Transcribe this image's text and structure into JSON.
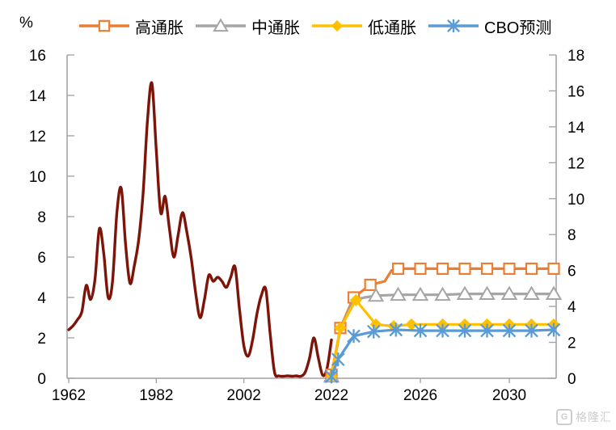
{
  "chart_data": {
    "type": "line",
    "title": "",
    "unit_label": "%",
    "grid": false,
    "legend_position": "top",
    "left_axis": {
      "min": 0,
      "max": 16,
      "ticks": [
        0,
        2,
        4,
        6,
        8,
        10,
        12,
        14,
        16
      ]
    },
    "right_axis": {
      "min": 0,
      "max": 18,
      "ticks": [
        0,
        2,
        4,
        6,
        8,
        10,
        12,
        14,
        16,
        18
      ]
    },
    "x_axis": {
      "tick_labels": [
        "1962",
        "1982",
        "2002",
        "2022",
        "2026",
        "2030"
      ],
      "tick_years": [
        1962,
        1982,
        2002,
        2022,
        2026,
        2030
      ],
      "start_year": 1962,
      "end_year": 2032
    },
    "legend": [
      {
        "label": "高通胀",
        "color": "#ED7D31",
        "marker": "square"
      },
      {
        "label": "中通胀",
        "color": "#A5A5A5",
        "marker": "triangle"
      },
      {
        "label": "低通胀",
        "color": "#FFC000",
        "marker": "diamond"
      },
      {
        "label": "CBO预测",
        "color": "#5B9BD5",
        "marker": "star"
      }
    ],
    "series": [
      {
        "id": "historical-inflation",
        "axis": "left",
        "color": "#7D1409",
        "width": 3.4,
        "smooth": true,
        "marker": "none",
        "points": [
          [
            1962,
            2.4
          ],
          [
            1963,
            2.6
          ],
          [
            1964,
            2.9
          ],
          [
            1965,
            3.3
          ],
          [
            1966,
            4.6
          ],
          [
            1967,
            3.9
          ],
          [
            1968,
            4.9
          ],
          [
            1969,
            7.4
          ],
          [
            1970,
            6.2
          ],
          [
            1971,
            4.0
          ],
          [
            1972,
            4.8
          ],
          [
            1973,
            8.2
          ],
          [
            1974,
            9.4
          ],
          [
            1975,
            6.6
          ],
          [
            1976,
            4.7
          ],
          [
            1977,
            5.6
          ],
          [
            1978,
            6.9
          ],
          [
            1979,
            9.2
          ],
          [
            1980,
            12.8
          ],
          [
            1981,
            14.6
          ],
          [
            1982,
            11.3
          ],
          [
            1983,
            8.2
          ],
          [
            1984,
            9.0
          ],
          [
            1985,
            7.4
          ],
          [
            1986,
            6.0
          ],
          [
            1987,
            7.1
          ],
          [
            1988,
            8.2
          ],
          [
            1989,
            7.2
          ],
          [
            1990,
            5.9
          ],
          [
            1991,
            4.2
          ],
          [
            1992,
            3.0
          ],
          [
            1993,
            3.9
          ],
          [
            1994,
            5.1
          ],
          [
            1995,
            4.8
          ],
          [
            1996,
            5.0
          ],
          [
            1997,
            4.8
          ],
          [
            1998,
            4.5
          ],
          [
            1999,
            5.0
          ],
          [
            2000,
            5.5
          ],
          [
            2001,
            3.4
          ],
          [
            2002,
            1.6
          ],
          [
            2003,
            1.1
          ],
          [
            2004,
            1.9
          ],
          [
            2005,
            3.2
          ],
          [
            2006,
            4.1
          ],
          [
            2007,
            4.4
          ],
          [
            2008,
            2.2
          ],
          [
            2009,
            0.3
          ],
          [
            2010,
            0.12
          ],
          [
            2011,
            0.1
          ],
          [
            2012,
            0.12
          ],
          [
            2013,
            0.1
          ],
          [
            2014,
            0.12
          ],
          [
            2015,
            0.1
          ],
          [
            2016,
            0.3
          ],
          [
            2017,
            1.0
          ],
          [
            2018,
            2.0
          ],
          [
            2019,
            1.0
          ],
          [
            2020,
            0.15
          ],
          [
            2021,
            0.5
          ],
          [
            2022,
            1.9
          ]
        ]
      },
      {
        "id": "high-inflation",
        "label": "高通胀",
        "axis": "right",
        "color": "#ED7D31",
        "width": 3.2,
        "smooth": false,
        "marker": "square",
        "points": [
          [
            2022,
            0.2,
            1
          ],
          [
            2022.4,
            2.8,
            1
          ],
          [
            2023,
            4.5,
            1
          ],
          [
            2023.75,
            5.2,
            1
          ],
          [
            2024.4,
            5.4,
            0
          ],
          [
            2024.7,
            6.0,
            0
          ],
          [
            2025,
            6.1,
            1
          ],
          [
            2026,
            6.1,
            1
          ],
          [
            2027,
            6.1,
            1
          ],
          [
            2028,
            6.1,
            1
          ],
          [
            2029,
            6.1,
            1
          ],
          [
            2030,
            6.1,
            1
          ],
          [
            2031,
            6.1,
            1
          ],
          [
            2032,
            6.1,
            1
          ]
        ]
      },
      {
        "id": "mid-inflation",
        "label": "中通胀",
        "axis": "right",
        "color": "#A5A5A5",
        "width": 3.2,
        "smooth": false,
        "marker": "triangle",
        "points": [
          [
            2022,
            0.1,
            1
          ],
          [
            2022.4,
            2.7,
            0
          ],
          [
            2023,
            4.35,
            0
          ],
          [
            2023.5,
            4.5,
            0
          ],
          [
            2024,
            4.6,
            1
          ],
          [
            2025,
            4.65,
            1
          ],
          [
            2026,
            4.65,
            1
          ],
          [
            2027,
            4.65,
            1
          ],
          [
            2028,
            4.7,
            1
          ],
          [
            2029,
            4.7,
            1
          ],
          [
            2030,
            4.7,
            1
          ],
          [
            2031,
            4.7,
            1
          ],
          [
            2032,
            4.7,
            1
          ]
        ]
      },
      {
        "id": "low-inflation",
        "label": "低通胀",
        "axis": "right",
        "color": "#FFC000",
        "width": 3.2,
        "smooth": false,
        "marker": "diamond",
        "points": [
          [
            2022,
            0.1,
            1
          ],
          [
            2022.4,
            2.8,
            1
          ],
          [
            2023.1,
            4.35,
            1
          ],
          [
            2024,
            3.0,
            1
          ],
          [
            2024.8,
            2.9,
            1
          ],
          [
            2025.6,
            3.0,
            1
          ],
          [
            2026.4,
            3.0,
            0
          ],
          [
            2027,
            3.0,
            1
          ],
          [
            2028,
            3.0,
            1
          ],
          [
            2029,
            3.0,
            1
          ],
          [
            2030,
            3.0,
            1
          ],
          [
            2031,
            3.0,
            1
          ],
          [
            2032,
            3.0,
            1
          ]
        ]
      },
      {
        "id": "cbo-forecast",
        "label": "CBO预测",
        "axis": "right",
        "color": "#5B9BD5",
        "width": 3.2,
        "smooth": false,
        "marker": "star",
        "points": [
          [
            2022,
            0.1,
            1
          ],
          [
            2022.3,
            1.05,
            1
          ],
          [
            2023,
            2.35,
            1
          ],
          [
            2023.9,
            2.6,
            1
          ],
          [
            2024.9,
            2.7,
            1
          ],
          [
            2026,
            2.65,
            1
          ],
          [
            2027,
            2.65,
            1
          ],
          [
            2028,
            2.65,
            1
          ],
          [
            2029,
            2.65,
            1
          ],
          [
            2030,
            2.65,
            1
          ],
          [
            2031,
            2.65,
            1
          ],
          [
            2032,
            2.7,
            1
          ]
        ]
      }
    ]
  },
  "watermark": {
    "logo_letter": "G",
    "text": "格隆汇"
  }
}
